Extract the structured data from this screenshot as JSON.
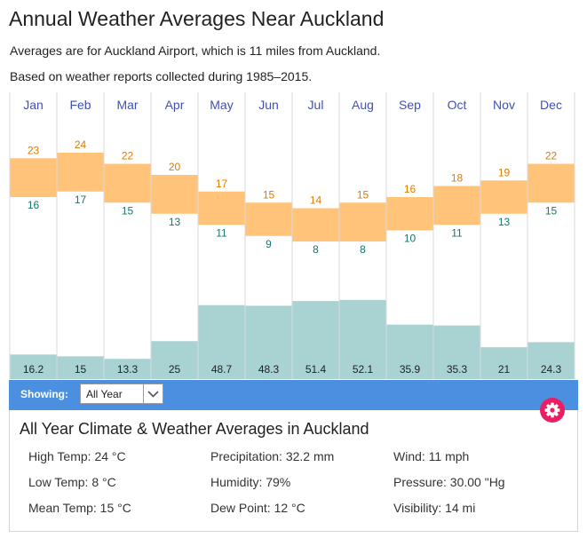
{
  "header": {
    "title": "Annual Weather Averages Near Auckland",
    "subtitle1": "Averages are for Auckland Airport, which is 11 miles from Auckland.",
    "subtitle2": "Based on weather reports collected during 1985–2015."
  },
  "chart_data": {
    "type": "bar",
    "categories": [
      "Jan",
      "Feb",
      "Mar",
      "Apr",
      "May",
      "Jun",
      "Jul",
      "Aug",
      "Sep",
      "Oct",
      "Nov",
      "Dec"
    ],
    "series": [
      {
        "name": "High Temp",
        "values": [
          23,
          24,
          22,
          20,
          17,
          15,
          14,
          15,
          16,
          18,
          19,
          22
        ]
      },
      {
        "name": "Low Temp",
        "values": [
          16,
          17,
          15,
          13,
          11,
          9,
          8,
          8,
          10,
          11,
          13,
          15
        ]
      },
      {
        "name": "Precipitation",
        "values": [
          16.2,
          15,
          13.3,
          25,
          48.7,
          48.3,
          51.4,
          52.1,
          35.9,
          35.3,
          21,
          24.3
        ]
      }
    ],
    "colors": {
      "temp_range": "#ffc47a",
      "high_label": "#e07b00",
      "low_label": "#17756e",
      "precip": "#a9d2d2",
      "month_label": "#3f51b5"
    }
  },
  "controls": {
    "showing_label": "Showing:",
    "selected_period": "All Year",
    "bar_color": "#4a8fe0",
    "gear_color": "#e91e63"
  },
  "summary": {
    "title": "All Year Climate & Weather Averages in Auckland",
    "high_temp": "High Temp: 24 °C",
    "low_temp": "Low Temp: 8 °C",
    "mean_temp": "Mean Temp: 15 °C",
    "precipitation": "Precipitation: 32.2 mm",
    "humidity": "Humidity: 79%",
    "dew_point": "Dew Point: 12 °C",
    "wind": "Wind: 11 mph",
    "pressure": "Pressure: 30.00 \"Hg",
    "visibility": "Visibility: 14 mi"
  }
}
